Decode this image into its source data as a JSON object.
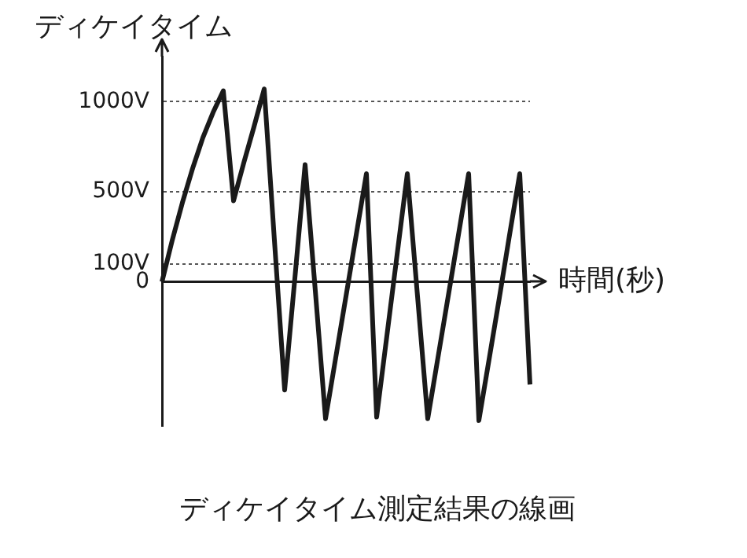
{
  "chart_data": {
    "type": "line",
    "title": "ディケイタイム測定結果の線画",
    "ylabel": "ディケイタイム",
    "xlabel": "時間(秒)",
    "categories": [
      null,
      null,
      null,
      null,
      null,
      null,
      null,
      null,
      null,
      null,
      null,
      null,
      null,
      null,
      null,
      null,
      null,
      null,
      null,
      null,
      null,
      null,
      null,
      null,
      null,
      null,
      null,
      null,
      null,
      null,
      null,
      null,
      null,
      null,
      null,
      null,
      null
    ],
    "series": [
      {
        "color": "#1a1a1a",
        "values": [
          0,
          230,
          440,
          630,
          800,
          940,
          1060,
          450,
          660,
          860,
          1070,
          230,
          -600,
          20,
          650,
          -50,
          -760,
          -420,
          -80,
          260,
          600,
          -750,
          -300,
          150,
          600,
          -80,
          -760,
          -420,
          -80,
          260,
          600,
          -770,
          -430,
          -90,
          260,
          600,
          -570
        ]
      }
    ],
    "ylim": [
      -800,
      1250
    ],
    "yticks": [
      {
        "value": 0,
        "label": "0"
      },
      {
        "value": 100,
        "label": "100V"
      },
      {
        "value": 500,
        "label": "500V"
      },
      {
        "value": 1000,
        "label": "1000V"
      }
    ],
    "grid": "y",
    "tick_labels": "y",
    "legend": false,
    "marker": "none",
    "line_style": "solid"
  }
}
